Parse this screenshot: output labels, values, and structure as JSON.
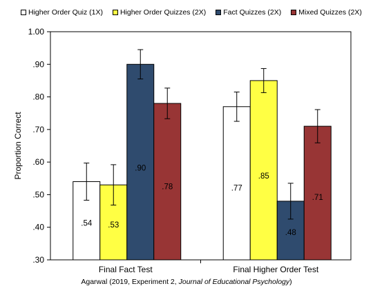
{
  "chart_data": {
    "type": "bar",
    "ylabel": "Proportion Correct",
    "ylim": [
      0.3,
      1.0
    ],
    "yticks": [
      {
        "value": 1.0,
        "label": "1.00"
      },
      {
        "value": 0.9,
        "label": ".90"
      },
      {
        "value": 0.8,
        "label": ".80"
      },
      {
        "value": 0.7,
        "label": ".70"
      },
      {
        "value": 0.6,
        "label": ".60"
      },
      {
        "value": 0.5,
        "label": ".50"
      },
      {
        "value": 0.4,
        "label": ".40"
      },
      {
        "value": 0.3,
        "label": ".30"
      }
    ],
    "categories": [
      "Final Fact Test",
      "Final Higher Order Test"
    ],
    "series": [
      {
        "name": "Higher Order Quiz (1X)",
        "color": "#ffffff",
        "values": [
          0.54,
          0.77
        ],
        "labels": [
          ".54",
          ".77"
        ],
        "err": [
          0.057,
          0.045
        ]
      },
      {
        "name": "Higher Order Quizzes (2X)",
        "color": "#ffff44",
        "values": [
          0.53,
          0.85
        ],
        "labels": [
          ".53",
          ".85"
        ],
        "err": [
          0.062,
          0.037
        ]
      },
      {
        "name": "Fact Quizzes (2X)",
        "color": "#2f4b6e",
        "values": [
          0.9,
          0.48
        ],
        "labels": [
          ".90",
          ".48"
        ],
        "err": [
          0.045,
          0.055
        ]
      },
      {
        "name": "Mixed Quizzes (2X)",
        "color": "#983535",
        "values": [
          0.78,
          0.71
        ],
        "labels": [
          ".78",
          ".71"
        ],
        "err": [
          0.047,
          0.051
        ]
      }
    ],
    "legend_position": "top",
    "grid": false
  },
  "caption": {
    "prefix": "Agarwal (2019, Experiment 2, ",
    "journal": "Journal of Educational Psychology",
    "suffix": ")"
  }
}
